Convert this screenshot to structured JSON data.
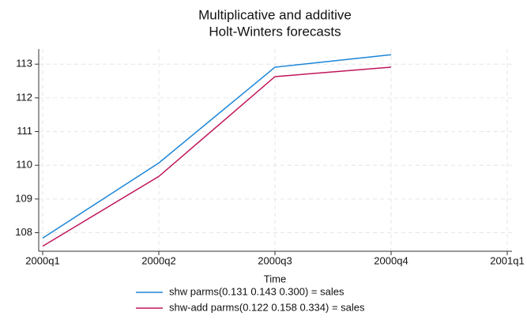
{
  "chart_data": {
    "type": "line",
    "title": [
      "Multiplicative and additive",
      "Holt-Winters forecasts"
    ],
    "x_label": "Time",
    "categories": [
      "2000q1",
      "2000q2",
      "2000q3",
      "2000q4",
      "2001q1"
    ],
    "series": [
      {
        "name": "shw parms(0.131 0.143 0.300) = sales",
        "color": "#1a85d8",
        "values": [
          107.84,
          110.07,
          112.91,
          113.28,
          null
        ]
      },
      {
        "name": "shw-add parms(0.122 0.158 0.334) = sales",
        "color": "#c0165a",
        "values": [
          107.6,
          109.67,
          112.63,
          112.91,
          null
        ]
      }
    ],
    "ylim": [
      107.45,
      113.45
    ],
    "yticks": [
      108,
      109,
      110,
      111,
      112,
      113
    ],
    "grid": true,
    "legend": "bottom"
  }
}
